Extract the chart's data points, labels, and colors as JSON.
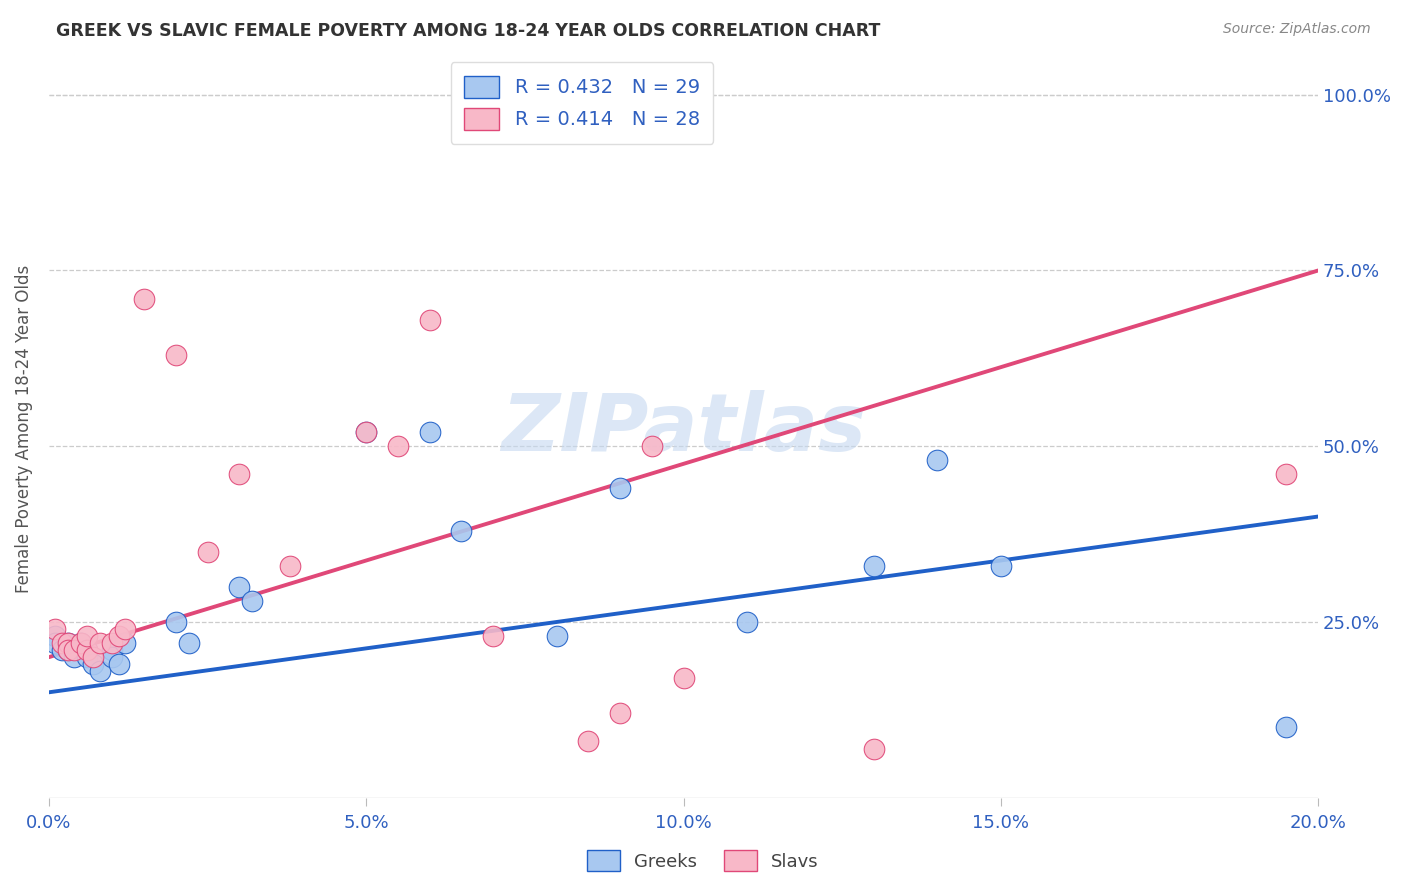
{
  "title": "GREEK VS SLAVIC FEMALE POVERTY AMONG 18-24 YEAR OLDS CORRELATION CHART",
  "source": "Source: ZipAtlas.com",
  "ylabel_label": "Female Poverty Among 18-24 Year Olds",
  "xlim": [
    0.0,
    0.2
  ],
  "ylim": [
    0.0,
    1.05
  ],
  "xtick_labels": [
    "0.0%",
    "5.0%",
    "10.0%",
    "15.0%",
    "20.0%"
  ],
  "xtick_vals": [
    0.0,
    0.05,
    0.1,
    0.15,
    0.2
  ],
  "ytick_labels": [
    "25.0%",
    "50.0%",
    "75.0%",
    "100.0%"
  ],
  "ytick_vals": [
    0.25,
    0.5,
    0.75,
    1.0
  ],
  "greeks_color": "#a8c8f0",
  "slavs_color": "#f8b8c8",
  "greeks_line_color": "#2060c8",
  "slavs_line_color": "#e04878",
  "greeks_R": 0.432,
  "greeks_N": 29,
  "slavs_R": 0.414,
  "slavs_N": 28,
  "watermark": "ZIPatlas",
  "greeks_line_x0": 0.0,
  "greeks_line_y0": 0.15,
  "greeks_line_x1": 0.2,
  "greeks_line_y1": 0.4,
  "slavs_line_x0": 0.0,
  "slavs_line_y0": 0.2,
  "slavs_line_x1": 0.2,
  "slavs_line_y1": 0.75,
  "greeks_x": [
    0.001,
    0.001,
    0.002,
    0.003,
    0.003,
    0.004,
    0.005,
    0.006,
    0.006,
    0.007,
    0.008,
    0.01,
    0.01,
    0.011,
    0.012,
    0.02,
    0.022,
    0.03,
    0.032,
    0.05,
    0.06,
    0.065,
    0.08,
    0.09,
    0.11,
    0.13,
    0.14,
    0.15,
    0.195
  ],
  "greeks_y": [
    0.23,
    0.22,
    0.21,
    0.22,
    0.21,
    0.2,
    0.22,
    0.21,
    0.2,
    0.19,
    0.18,
    0.21,
    0.2,
    0.19,
    0.22,
    0.25,
    0.22,
    0.3,
    0.28,
    0.52,
    0.52,
    0.38,
    0.23,
    0.44,
    0.25,
    0.33,
    0.48,
    0.33,
    0.1
  ],
  "slavs_x": [
    0.001,
    0.002,
    0.003,
    0.003,
    0.004,
    0.005,
    0.006,
    0.006,
    0.007,
    0.008,
    0.01,
    0.011,
    0.012,
    0.015,
    0.02,
    0.025,
    0.03,
    0.038,
    0.05,
    0.055,
    0.06,
    0.07,
    0.085,
    0.09,
    0.095,
    0.1,
    0.13,
    0.195
  ],
  "slavs_y": [
    0.24,
    0.22,
    0.22,
    0.21,
    0.21,
    0.22,
    0.21,
    0.23,
    0.2,
    0.22,
    0.22,
    0.23,
    0.24,
    0.71,
    0.63,
    0.35,
    0.46,
    0.33,
    0.52,
    0.5,
    0.68,
    0.23,
    0.08,
    0.12,
    0.5,
    0.17,
    0.07,
    0.46
  ],
  "background_color": "#ffffff",
  "grid_color": "#cccccc",
  "title_color": "#333333",
  "axis_label_color": "#555555",
  "tick_color": "#3060c0",
  "legend_label_color": "#3060c0"
}
